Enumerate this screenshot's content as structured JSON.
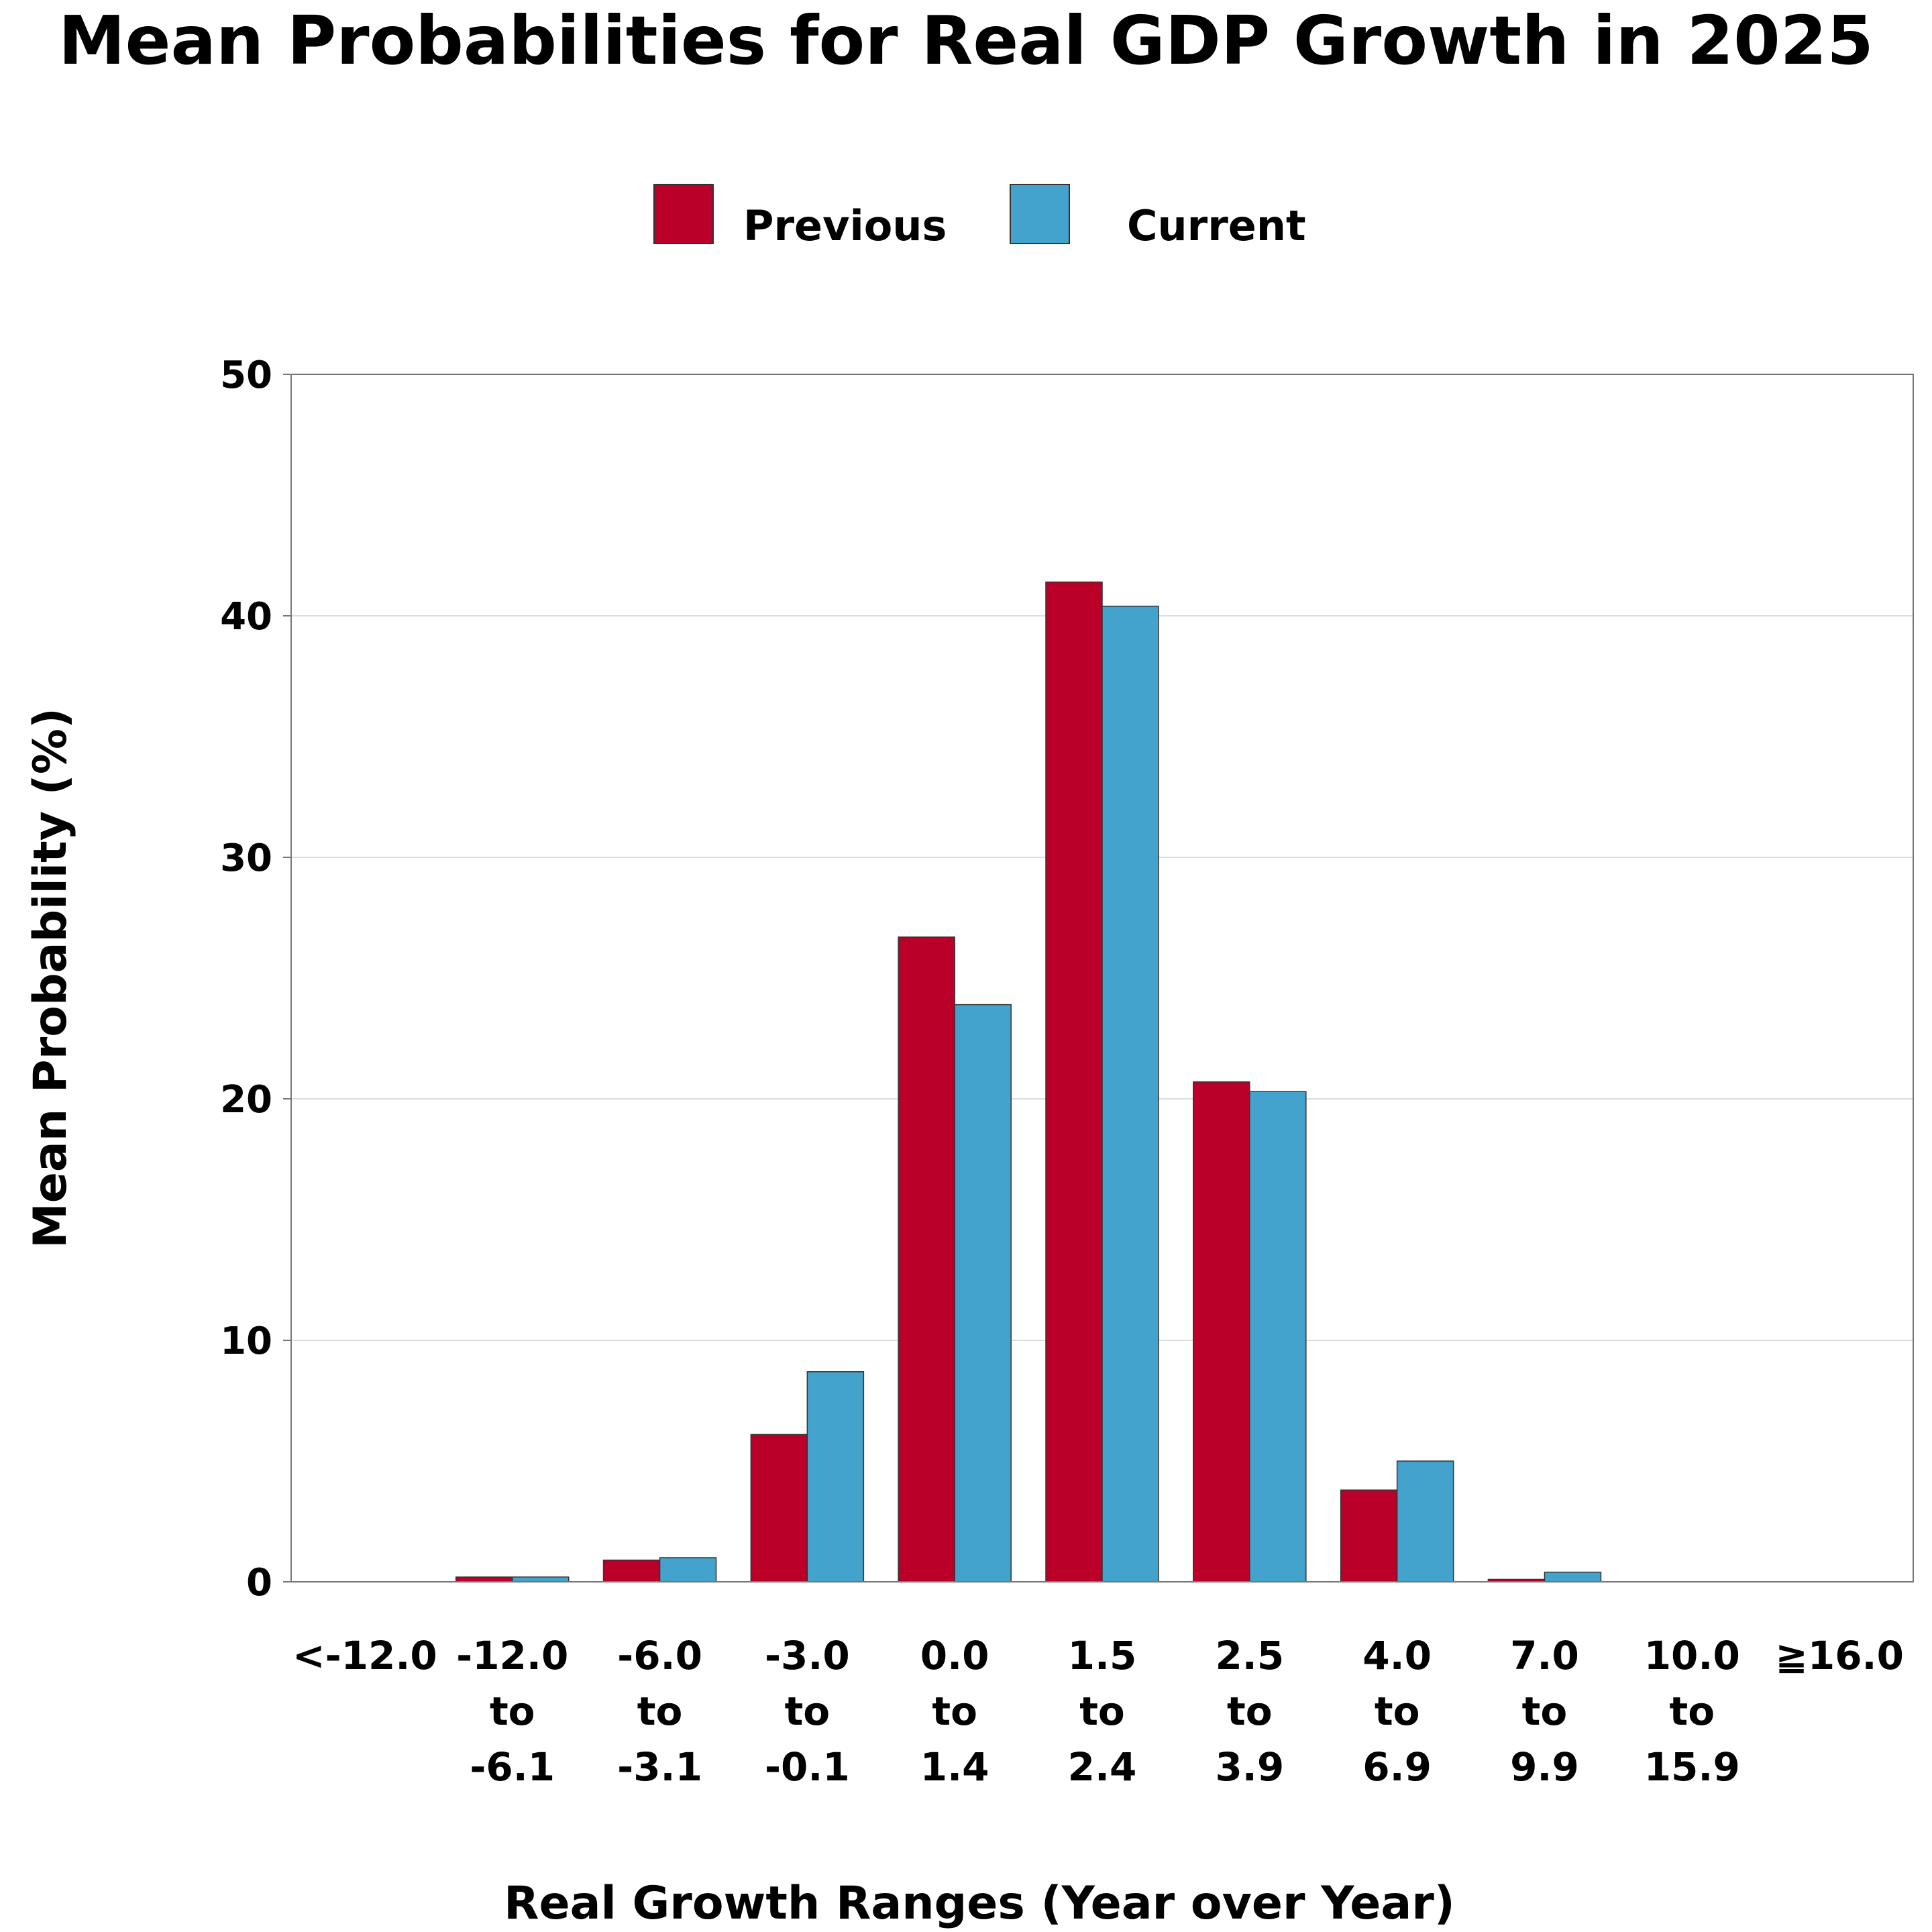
{
  "chart_data": {
    "type": "bar",
    "title": "Mean Probabilities for Real GDP Growth in 2025",
    "xlabel": "Real Growth Ranges (Year over Year)",
    "ylabel": "Mean Probability (%)",
    "ylim": [
      0,
      50
    ],
    "yticks": [
      "0",
      "10",
      "20",
      "30",
      "40",
      "50"
    ],
    "grid": "horizontal",
    "legend_position": "top-center",
    "categories": [
      [
        "<-12.0"
      ],
      [
        "-12.0",
        "to",
        "-6.1"
      ],
      [
        "-6.0",
        "to",
        "-3.1"
      ],
      [
        "-3.0",
        "to",
        "-0.1"
      ],
      [
        "0.0",
        "to",
        "1.4"
      ],
      [
        "1.5",
        "to",
        "2.4"
      ],
      [
        "2.5",
        "to",
        "3.9"
      ],
      [
        "4.0",
        "to",
        "6.9"
      ],
      [
        "7.0",
        "to",
        "9.9"
      ],
      [
        "10.0",
        "to",
        "15.9"
      ],
      [
        "≧16.0"
      ]
    ],
    "series": [
      {
        "name": "Previous",
        "color": "#BA0028",
        "values": [
          0.0,
          0.2,
          0.9,
          6.1,
          26.7,
          41.4,
          20.7,
          3.8,
          0.1,
          0.0,
          0.0
        ]
      },
      {
        "name": "Current",
        "color": "#44A3CC",
        "values": [
          0.0,
          0.2,
          1.0,
          8.7,
          23.9,
          40.4,
          20.3,
          5.0,
          0.4,
          0.0,
          0.0
        ]
      }
    ]
  }
}
